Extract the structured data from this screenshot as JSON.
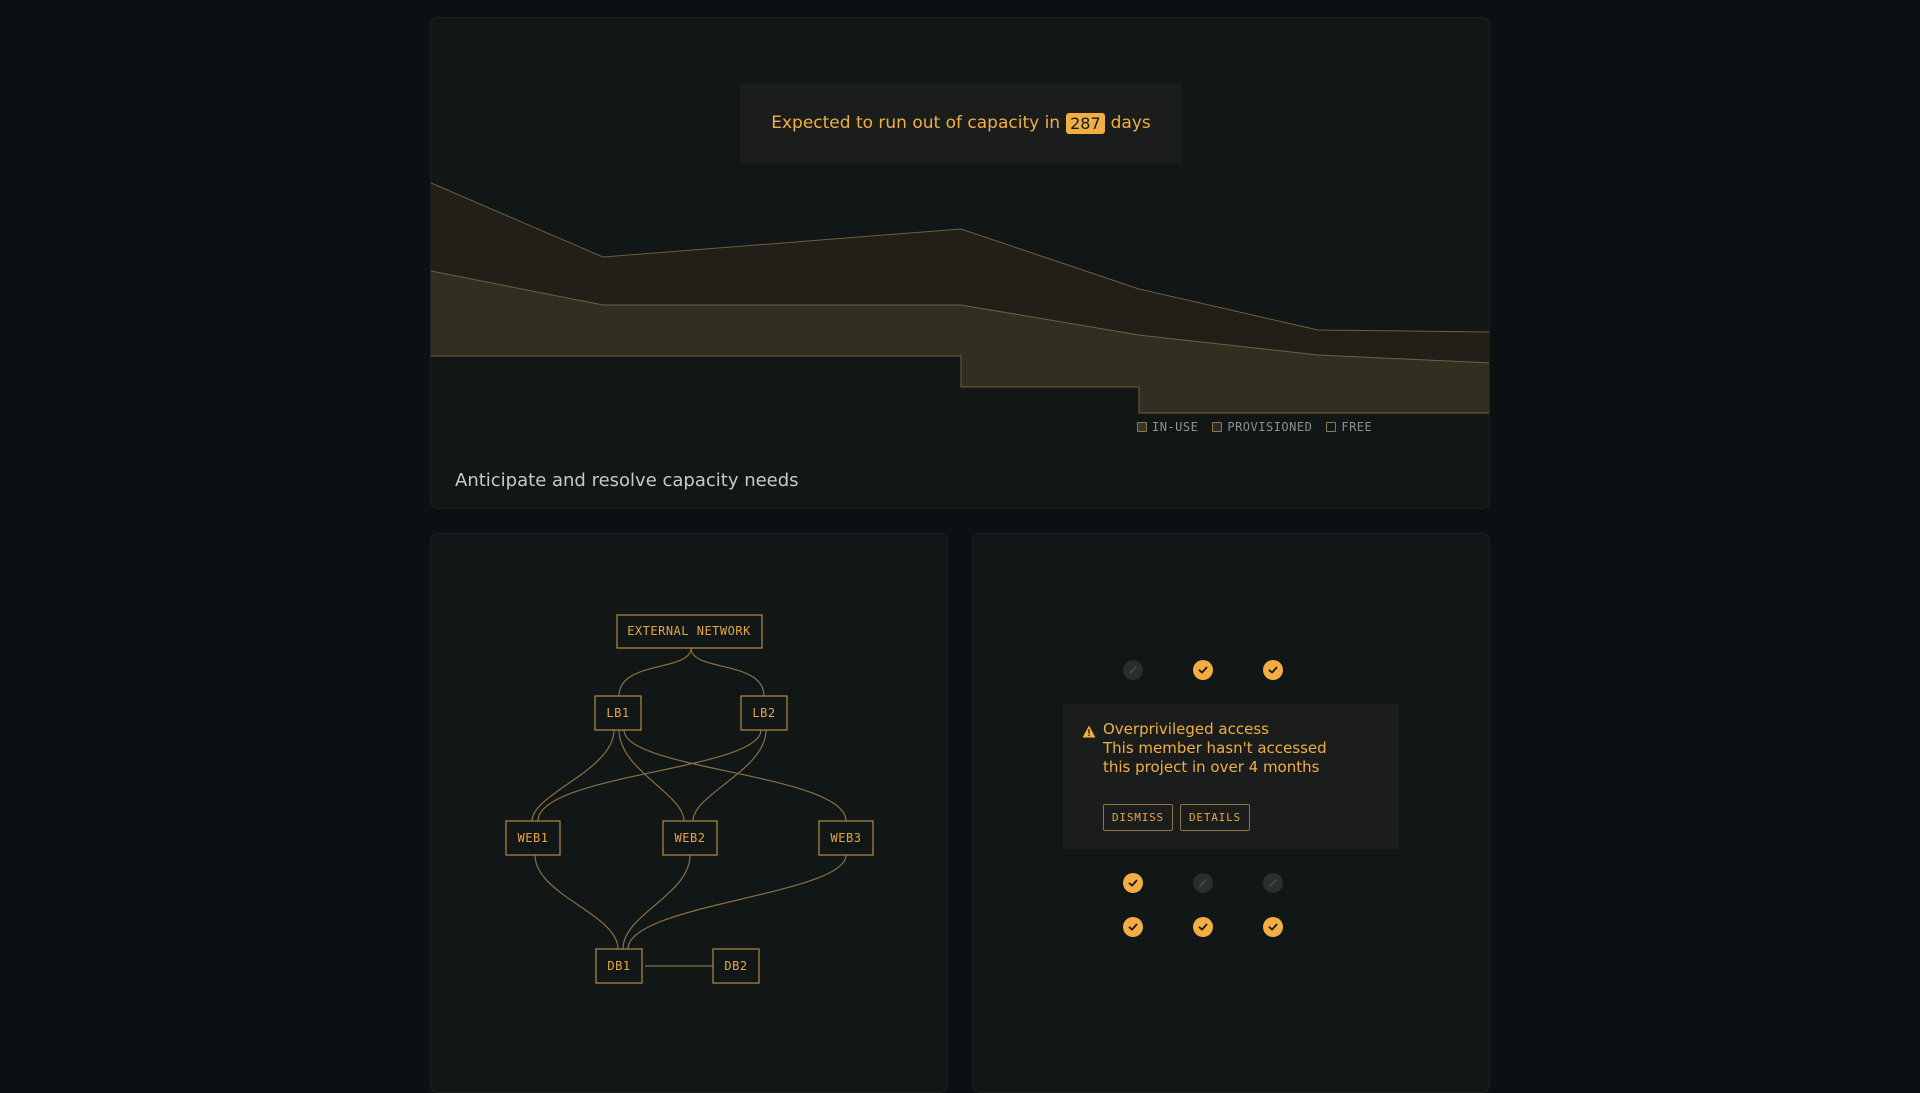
{
  "capacity": {
    "forecast_prefix": "Expected to run out of capacity in",
    "forecast_days": "287",
    "forecast_suffix": "days",
    "caption": "Anticipate and resolve capacity needs",
    "legend": [
      "IN-USE",
      "PROVISIONED",
      "FREE"
    ]
  },
  "topology": {
    "nodes": {
      "external": "EXTERNAL NETWORK",
      "lb1": "LB1",
      "lb2": "LB2",
      "web1": "WEB1",
      "web2": "WEB2",
      "web3": "WEB3",
      "db1": "DB1",
      "db2": "DB2"
    }
  },
  "access": {
    "top_row": [
      "none",
      "check",
      "check"
    ],
    "bottom_row1": [
      "check",
      "none",
      "none"
    ],
    "bottom_row2": [
      "check",
      "check",
      "check"
    ],
    "alert_title": "Overprivileged access",
    "alert_line1": "This member hasn't accessed",
    "alert_line2": "this project in over 4 months",
    "dismiss_label": "DISMISS",
    "details_label": "DETAILS"
  },
  "colors": {
    "accent": "#f2ad43",
    "background": "#0b1012",
    "card": "#111617"
  }
}
